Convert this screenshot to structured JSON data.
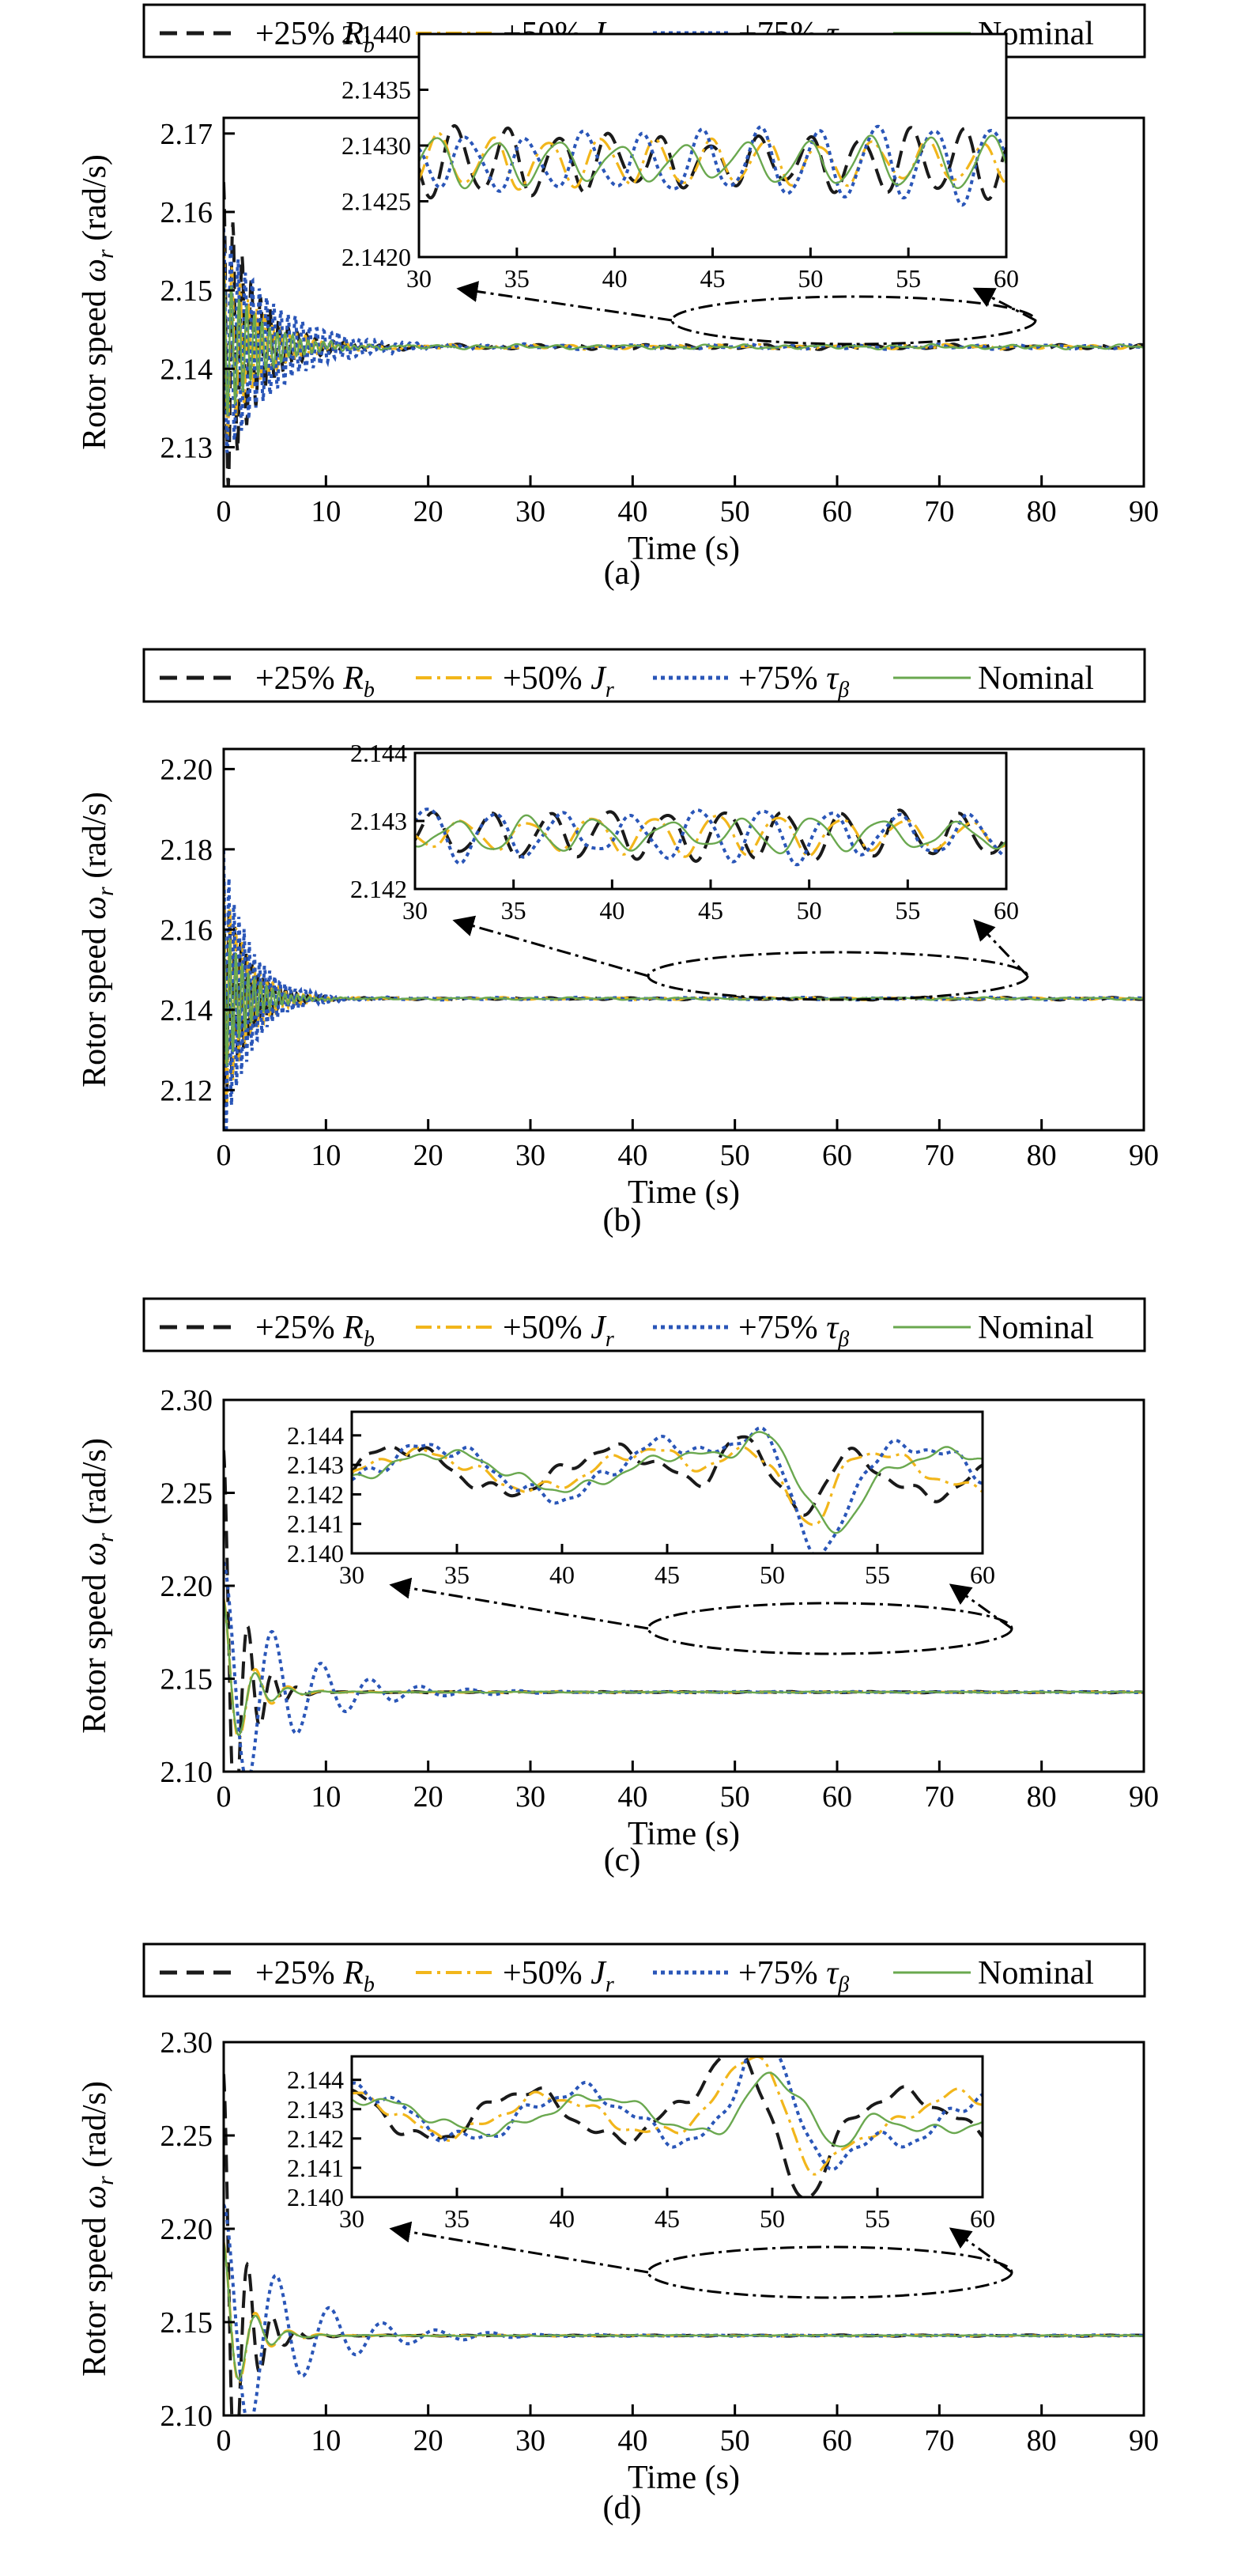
{
  "colors": {
    "rb": "#1a1a1a",
    "jr": "#f2b61b",
    "tau": "#2a56b8",
    "nominal": "#6aa84f",
    "frame": "#000000"
  },
  "legend": {
    "rb": {
      "prefix": "+25%",
      "sym": "R",
      "sub": "b"
    },
    "jr": {
      "prefix": "+50%",
      "sym": "J",
      "sub": "r"
    },
    "tau": {
      "prefix": "+75%",
      "sym": "τ",
      "sub": "β"
    },
    "nominal": {
      "label": "Nominal"
    }
  },
  "xlabel": "Time (s)",
  "ylabel_prefix": "Rotor speed ",
  "ylabel_sym": "ω",
  "ylabel_sub": "r",
  "ylabel_suffix": " (rad/s)",
  "chart_data": [
    {
      "type": "line",
      "caption": "(a)",
      "xlim": [
        0,
        90
      ],
      "xticks": [
        "0",
        "10",
        "20",
        "30",
        "40",
        "50",
        "60",
        "70",
        "80",
        "90"
      ],
      "ylim": [
        2.125,
        2.172
      ],
      "yticks": [
        {
          "v": 2.13,
          "label": "2.13"
        },
        {
          "v": 2.14,
          "label": "2.14"
        },
        {
          "v": 2.15,
          "label": "2.15"
        },
        {
          "v": 2.16,
          "label": "2.16"
        },
        {
          "v": 2.17,
          "label": "2.17"
        }
      ],
      "steady": 2.1428,
      "series": [
        {
          "key": "rb",
          "amp": 0.021,
          "decay": 0.33,
          "period": 0.9
        },
        {
          "key": "jr",
          "amp": 0.013,
          "decay": 0.3,
          "period": 0.8
        },
        {
          "key": "tau",
          "amp": 0.015,
          "decay": 0.2,
          "period": 0.7
        },
        {
          "key": "nominal",
          "amp": 0.01,
          "decay": 0.3,
          "period": 0.75
        }
      ],
      "inset": {
        "xlim": [
          30,
          60
        ],
        "xticks": [
          "30",
          "35",
          "40",
          "45",
          "50",
          "55",
          "60"
        ],
        "ylim": [
          2.142,
          2.144
        ],
        "yticks": [
          {
            "v": 2.142,
            "label": "2.1420"
          },
          {
            "v": 2.1425,
            "label": "2.1425"
          },
          {
            "v": 2.143,
            "label": "2.1430"
          },
          {
            "v": 2.1435,
            "label": "2.1435"
          },
          {
            "v": 2.144,
            "label": "2.1440"
          }
        ],
        "center": 2.14285,
        "amp": 0.00035,
        "period": 2.6
      }
    },
    {
      "type": "line",
      "caption": "(b)",
      "xlim": [
        0,
        90
      ],
      "xticks": [
        "0",
        "10",
        "20",
        "30",
        "40",
        "50",
        "60",
        "70",
        "80",
        "90"
      ],
      "ylim": [
        2.11,
        2.205
      ],
      "yticks": [
        {
          "v": 2.12,
          "label": "2.12"
        },
        {
          "v": 2.14,
          "label": "2.14"
        },
        {
          "v": 2.16,
          "label": "2.16"
        },
        {
          "v": 2.18,
          "label": "2.18"
        },
        {
          "v": 2.2,
          "label": "2.20"
        }
      ],
      "steady": 2.1428,
      "series": [
        {
          "key": "rb",
          "amp": 0.03,
          "decay": 0.45,
          "period": 0.55
        },
        {
          "key": "jr",
          "amp": 0.03,
          "decay": 0.42,
          "period": 0.6
        },
        {
          "key": "tau",
          "amp": 0.037,
          "decay": 0.38,
          "period": 0.5
        },
        {
          "key": "nominal",
          "amp": 0.02,
          "decay": 0.45,
          "period": 0.6
        }
      ],
      "inset": {
        "xlim": [
          30,
          60
        ],
        "xticks": [
          "30",
          "35",
          "40",
          "45",
          "50",
          "55",
          "60"
        ],
        "ylim": [
          2.142,
          2.144
        ],
        "yticks": [
          {
            "v": 2.142,
            "label": "2.142"
          },
          {
            "v": 2.143,
            "label": "2.143"
          },
          {
            "v": 2.144,
            "label": "2.144"
          }
        ],
        "center": 2.1428,
        "amp": 0.0004,
        "period": 3.0
      }
    },
    {
      "type": "line",
      "caption": "(c)",
      "xlim": [
        0,
        90
      ],
      "xticks": [
        "0",
        "10",
        "20",
        "30",
        "40",
        "50",
        "60",
        "70",
        "80",
        "90"
      ],
      "ylim": [
        2.1,
        2.3
      ],
      "yticks": [
        {
          "v": 2.1,
          "label": "2.10"
        },
        {
          "v": 2.15,
          "label": "2.15"
        },
        {
          "v": 2.2,
          "label": "2.20"
        },
        {
          "v": 2.25,
          "label": "2.25"
        },
        {
          "v": 2.3,
          "label": "2.30"
        }
      ],
      "steady": 2.1428,
      "series": [
        {
          "key": "rb",
          "amp": 0.13,
          "decay": 0.55,
          "period": 2.4
        },
        {
          "key": "jr",
          "amp": 0.05,
          "decay": 0.45,
          "period": 3.2
        },
        {
          "key": "tau",
          "amp": 0.07,
          "decay": 0.16,
          "period": 4.8
        },
        {
          "key": "nominal",
          "amp": 0.05,
          "decay": 0.5,
          "period": 3.2
        }
      ],
      "inset": {
        "xlim": [
          30,
          60
        ],
        "xticks": [
          "30",
          "35",
          "40",
          "45",
          "50",
          "55",
          "60"
        ],
        "ylim": [
          2.14,
          2.1448
        ],
        "yticks": [
          {
            "v": 2.14,
            "label": "2.140"
          },
          {
            "v": 2.141,
            "label": "2.141"
          },
          {
            "v": 2.142,
            "label": "2.142"
          },
          {
            "v": 2.143,
            "label": "2.143"
          },
          {
            "v": 2.144,
            "label": "2.144"
          }
        ],
        "center": 2.1428,
        "amp": 0.0011,
        "period": 10.0
      }
    },
    {
      "type": "line",
      "caption": "(d)",
      "xlim": [
        0,
        90
      ],
      "xticks": [
        "0",
        "10",
        "20",
        "30",
        "40",
        "50",
        "60",
        "70",
        "80",
        "90"
      ],
      "ylim": [
        2.1,
        2.3
      ],
      "yticks": [
        {
          "v": 2.1,
          "label": "2.10"
        },
        {
          "v": 2.15,
          "label": "2.15"
        },
        {
          "v": 2.2,
          "label": "2.20"
        },
        {
          "v": 2.25,
          "label": "2.25"
        },
        {
          "v": 2.3,
          "label": "2.30"
        }
      ],
      "steady": 2.1428,
      "series": [
        {
          "key": "rb",
          "amp": 0.14,
          "decay": 0.55,
          "period": 2.4
        },
        {
          "key": "jr",
          "amp": 0.05,
          "decay": 0.45,
          "period": 3.2
        },
        {
          "key": "tau",
          "amp": 0.07,
          "decay": 0.15,
          "period": 5.2
        },
        {
          "key": "nominal",
          "amp": 0.05,
          "decay": 0.5,
          "period": 3.2
        }
      ],
      "inset": {
        "xlim": [
          30,
          60
        ],
        "xticks": [
          "30",
          "35",
          "40",
          "45",
          "50",
          "55",
          "60"
        ],
        "ylim": [
          2.14,
          2.1448
        ],
        "yticks": [
          {
            "v": 2.14,
            "label": "2.140"
          },
          {
            "v": 2.141,
            "label": "2.141"
          },
          {
            "v": 2.142,
            "label": "2.142"
          },
          {
            "v": 2.143,
            "label": "2.143"
          },
          {
            "v": 2.144,
            "label": "2.144"
          }
        ],
        "center": 2.1428,
        "amp": 0.0011,
        "period": 9.0
      }
    }
  ]
}
